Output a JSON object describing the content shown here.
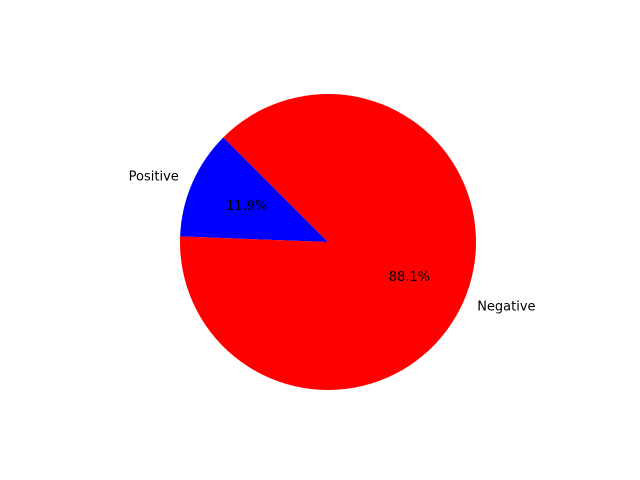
{
  "chart_data": {
    "type": "pie",
    "title": "",
    "categories": [
      "Positive",
      "Negative"
    ],
    "values": [
      11.9,
      88.1
    ],
    "value_labels": [
      "11.9%",
      "88.1%"
    ],
    "colors": [
      "#0000ff",
      "#ff0000"
    ],
    "start_angle_deg": 135,
    "direction": "counterclockwise",
    "legend": "none"
  }
}
